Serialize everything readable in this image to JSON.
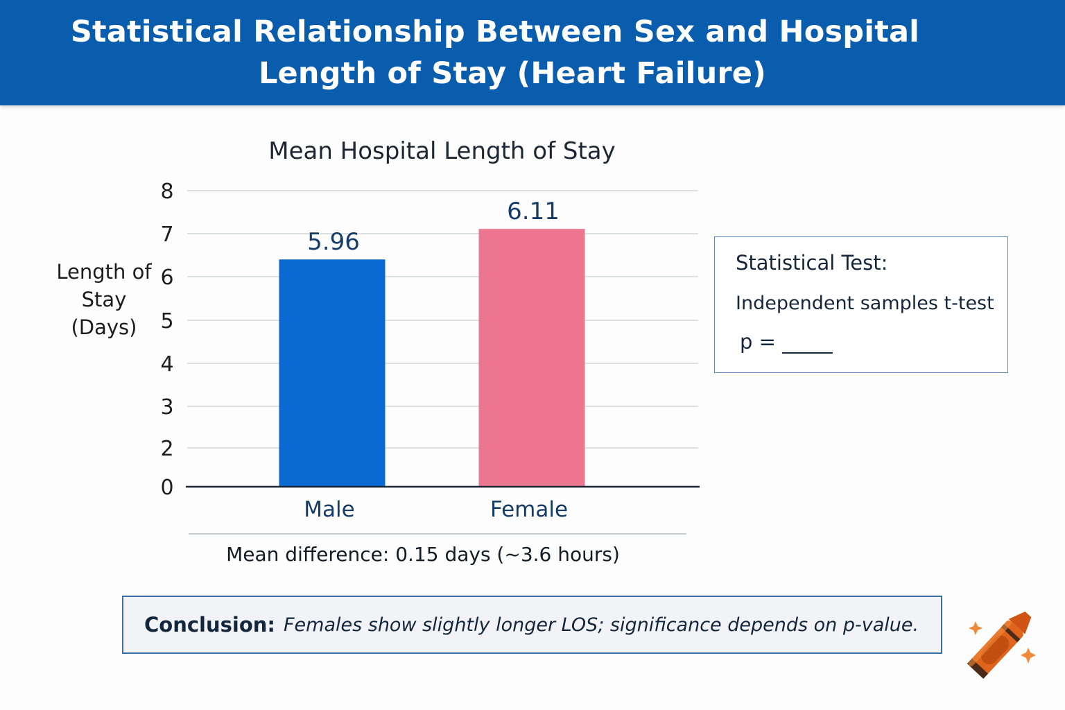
{
  "header": {
    "title_line1": "Statistical Relationship Between Sex and Hospital",
    "title_line2": "Length of Stay (Heart Failure)",
    "background_color": "#0a5cad"
  },
  "chart_data": {
    "type": "bar",
    "title": "Mean Hospital Length of Stay",
    "ylabel_lines": [
      "Length of",
      "Stay",
      "(Days)"
    ],
    "xlabel": "",
    "categories": [
      "Male",
      "Female"
    ],
    "values": [
      5.96,
      6.11
    ],
    "data_labels": [
      "5.96",
      "6.11"
    ],
    "bar_colors": [
      "#0a6ad1",
      "#ec7590"
    ],
    "yticks": [
      "0",
      "2",
      "3",
      "4",
      "5",
      "6",
      "7",
      "8"
    ],
    "grid": true,
    "legend": "none"
  },
  "stat_box": {
    "title": "Statistical Test:",
    "test": "Independent samples t-test",
    "p_value_label": "p = _____"
  },
  "mean_difference": "Mean difference: 0.15 days (~3.6 hours)",
  "conclusion": {
    "label": "Conclusion:",
    "text": "Females show slightly longer LOS; significance depends on p-value."
  },
  "decoration": {
    "icon": "crayon-icon",
    "crayon_color": "#e0641c",
    "sparkle_color": "#ef7a2a"
  }
}
